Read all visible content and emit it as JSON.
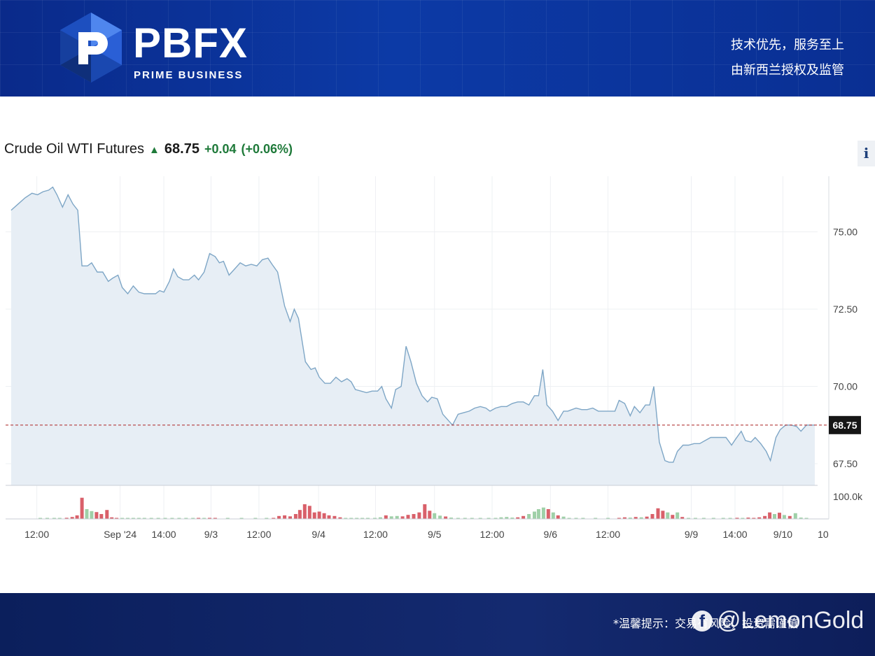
{
  "header": {
    "brand_name": "PBFX",
    "brand_sub": "PRIME BUSINESS",
    "slogan_line1": "技术优先，服务至上",
    "slogan_line2": "由新西兰授权及监管"
  },
  "quote": {
    "name": "Crude Oil WTI Futures",
    "price": "68.75",
    "change": "+0.04",
    "change_pct": "(+0.06%)",
    "info_label": "i"
  },
  "colors": {
    "line": "#7ea6c6",
    "area": "#e7eef5",
    "last_price_line": "#b3383a",
    "vol_up": "#9fd0a8",
    "vol_down": "#d9606a"
  },
  "footer": {
    "tip": "*温馨提示：交易有风险，投资需谨慎",
    "watermark": "@LemonGold"
  },
  "chart_data": {
    "type": "line",
    "title": "Crude Oil WTI Futures",
    "last_price": 68.75,
    "last_price_label": "68.75",
    "ylim": [
      66.8,
      76.8
    ],
    "y_ticks": [
      75.0,
      72.5,
      70.0,
      67.5
    ],
    "y_tick_labels": [
      "75.00",
      "72.50",
      "70.00",
      "67.50"
    ],
    "grid": true,
    "volume_scale_label": "100.0k",
    "volume_max": 180000,
    "x_range": [
      0,
      1170
    ],
    "x_ticks": [
      {
        "x": 45,
        "label": "12:00"
      },
      {
        "x": 165,
        "label": "Sep '24"
      },
      {
        "x": 228,
        "label": "14:00"
      },
      {
        "x": 296,
        "label": "9/3"
      },
      {
        "x": 365,
        "label": "12:00"
      },
      {
        "x": 451,
        "label": "9/4"
      },
      {
        "x": 533,
        "label": "12:00"
      },
      {
        "x": 618,
        "label": "9/5"
      },
      {
        "x": 701,
        "label": "12:00"
      },
      {
        "x": 785,
        "label": "9/6"
      },
      {
        "x": 868,
        "label": "12:00"
      },
      {
        "x": 988,
        "label": "9/9"
      },
      {
        "x": 1051,
        "label": "14:00"
      },
      {
        "x": 1120,
        "label": "9/10"
      },
      {
        "x": 1178,
        "label": "10"
      }
    ],
    "price": [
      [
        8,
        75.7
      ],
      [
        18,
        75.9
      ],
      [
        28,
        76.1
      ],
      [
        38,
        76.25
      ],
      [
        46,
        76.2
      ],
      [
        54,
        76.3
      ],
      [
        62,
        76.35
      ],
      [
        68,
        76.45
      ],
      [
        74,
        76.2
      ],
      [
        82,
        75.8
      ],
      [
        90,
        76.2
      ],
      [
        97,
        75.9
      ],
      [
        104,
        75.7
      ],
      [
        110,
        73.9
      ],
      [
        118,
        73.9
      ],
      [
        124,
        74.0
      ],
      [
        132,
        73.7
      ],
      [
        140,
        73.7
      ],
      [
        148,
        73.4
      ],
      [
        154,
        73.5
      ],
      [
        162,
        73.6
      ],
      [
        168,
        73.2
      ],
      [
        176,
        73.0
      ],
      [
        184,
        73.25
      ],
      [
        192,
        73.05
      ],
      [
        200,
        73.0
      ],
      [
        208,
        73.0
      ],
      [
        216,
        73.0
      ],
      [
        222,
        73.1
      ],
      [
        228,
        73.05
      ],
      [
        236,
        73.4
      ],
      [
        242,
        73.8
      ],
      [
        248,
        73.55
      ],
      [
        256,
        73.45
      ],
      [
        264,
        73.45
      ],
      [
        272,
        73.6
      ],
      [
        278,
        73.45
      ],
      [
        286,
        73.7
      ],
      [
        294,
        74.3
      ],
      [
        302,
        74.2
      ],
      [
        308,
        74.0
      ],
      [
        314,
        74.05
      ],
      [
        322,
        73.6
      ],
      [
        330,
        73.8
      ],
      [
        338,
        74.0
      ],
      [
        346,
        73.9
      ],
      [
        354,
        73.95
      ],
      [
        362,
        73.9
      ],
      [
        370,
        74.1
      ],
      [
        378,
        74.15
      ],
      [
        384,
        73.95
      ],
      [
        392,
        73.7
      ],
      [
        402,
        72.6
      ],
      [
        410,
        72.1
      ],
      [
        416,
        72.5
      ],
      [
        422,
        72.2
      ],
      [
        432,
        70.8
      ],
      [
        440,
        70.55
      ],
      [
        446,
        70.6
      ],
      [
        452,
        70.3
      ],
      [
        460,
        70.1
      ],
      [
        468,
        70.1
      ],
      [
        476,
        70.3
      ],
      [
        484,
        70.15
      ],
      [
        492,
        70.25
      ],
      [
        498,
        70.15
      ],
      [
        504,
        69.9
      ],
      [
        512,
        69.85
      ],
      [
        520,
        69.8
      ],
      [
        528,
        69.85
      ],
      [
        536,
        69.85
      ],
      [
        542,
        70.0
      ],
      [
        548,
        69.6
      ],
      [
        556,
        69.3
      ],
      [
        562,
        69.9
      ],
      [
        570,
        70.0
      ],
      [
        577,
        71.3
      ],
      [
        584,
        70.8
      ],
      [
        592,
        70.1
      ],
      [
        600,
        69.7
      ],
      [
        608,
        69.5
      ],
      [
        614,
        69.65
      ],
      [
        622,
        69.6
      ],
      [
        630,
        69.1
      ],
      [
        638,
        68.9
      ],
      [
        644,
        68.75
      ],
      [
        652,
        69.1
      ],
      [
        660,
        69.15
      ],
      [
        668,
        69.2
      ],
      [
        676,
        69.3
      ],
      [
        684,
        69.35
      ],
      [
        692,
        69.3
      ],
      [
        698,
        69.2
      ],
      [
        706,
        69.3
      ],
      [
        714,
        69.35
      ],
      [
        722,
        69.35
      ],
      [
        730,
        69.45
      ],
      [
        738,
        69.5
      ],
      [
        746,
        69.5
      ],
      [
        754,
        69.4
      ],
      [
        762,
        69.7
      ],
      [
        768,
        69.7
      ],
      [
        774,
        70.55
      ],
      [
        780,
        69.4
      ],
      [
        788,
        69.2
      ],
      [
        796,
        68.9
      ],
      [
        804,
        69.2
      ],
      [
        810,
        69.2
      ],
      [
        816,
        69.25
      ],
      [
        822,
        69.3
      ],
      [
        830,
        69.25
      ],
      [
        838,
        69.25
      ],
      [
        846,
        69.3
      ],
      [
        854,
        69.2
      ],
      [
        862,
        69.2
      ],
      [
        870,
        69.2
      ],
      [
        878,
        69.2
      ],
      [
        884,
        69.55
      ],
      [
        892,
        69.45
      ],
      [
        900,
        69.05
      ],
      [
        906,
        69.35
      ],
      [
        914,
        69.15
      ],
      [
        922,
        69.4
      ],
      [
        928,
        69.4
      ],
      [
        934,
        70.0
      ],
      [
        942,
        68.2
      ],
      [
        950,
        67.6
      ],
      [
        956,
        67.55
      ],
      [
        962,
        67.55
      ],
      [
        968,
        67.9
      ],
      [
        976,
        68.1
      ],
      [
        984,
        68.1
      ],
      [
        992,
        68.15
      ],
      [
        1000,
        68.15
      ],
      [
        1008,
        68.25
      ],
      [
        1016,
        68.35
      ],
      [
        1024,
        68.35
      ],
      [
        1032,
        68.35
      ],
      [
        1038,
        68.35
      ],
      [
        1046,
        68.1
      ],
      [
        1052,
        68.3
      ],
      [
        1060,
        68.55
      ],
      [
        1066,
        68.25
      ],
      [
        1074,
        68.2
      ],
      [
        1080,
        68.35
      ],
      [
        1088,
        68.15
      ],
      [
        1096,
        67.9
      ],
      [
        1102,
        67.6
      ],
      [
        1110,
        68.35
      ],
      [
        1116,
        68.6
      ],
      [
        1124,
        68.75
      ],
      [
        1132,
        68.75
      ],
      [
        1140,
        68.7
      ],
      [
        1146,
        68.55
      ],
      [
        1154,
        68.75
      ],
      [
        1160,
        68.75
      ],
      [
        1166,
        68.75
      ]
    ],
    "volume": [
      [
        50,
        3000,
        "up"
      ],
      [
        60,
        4000,
        "up"
      ],
      [
        70,
        3000,
        "up"
      ],
      [
        78,
        5000,
        "up"
      ],
      [
        88,
        7000,
        "down"
      ],
      [
        96,
        12000,
        "down"
      ],
      [
        103,
        22000,
        "down"
      ],
      [
        110,
        130000,
        "down"
      ],
      [
        117,
        60000,
        "up"
      ],
      [
        124,
        48000,
        "up"
      ],
      [
        131,
        42000,
        "down"
      ],
      [
        138,
        30000,
        "down"
      ],
      [
        146,
        55000,
        "down"
      ],
      [
        153,
        10000,
        "down"
      ],
      [
        160,
        6000,
        "down"
      ],
      [
        168,
        4000,
        "up"
      ],
      [
        176,
        3000,
        "up"
      ],
      [
        184,
        3000,
        "up"
      ],
      [
        192,
        3000,
        "up"
      ],
      [
        200,
        2000,
        "up"
      ],
      [
        210,
        2000,
        "up"
      ],
      [
        220,
        2000,
        "up"
      ],
      [
        230,
        2000,
        "up"
      ],
      [
        240,
        2000,
        "up"
      ],
      [
        250,
        2000,
        "up"
      ],
      [
        260,
        2000,
        "up"
      ],
      [
        270,
        3000,
        "up"
      ],
      [
        278,
        6000,
        "down"
      ],
      [
        286,
        4000,
        "up"
      ],
      [
        294,
        4000,
        "down"
      ],
      [
        302,
        3000,
        "down"
      ],
      [
        320,
        2000,
        "up"
      ],
      [
        340,
        2000,
        "up"
      ],
      [
        360,
        3000,
        "up"
      ],
      [
        376,
        3000,
        "up"
      ],
      [
        386,
        6000,
        "down"
      ],
      [
        394,
        18000,
        "down"
      ],
      [
        402,
        22000,
        "down"
      ],
      [
        410,
        16000,
        "down"
      ],
      [
        418,
        30000,
        "down"
      ],
      [
        424,
        55000,
        "down"
      ],
      [
        431,
        90000,
        "down"
      ],
      [
        438,
        80000,
        "down"
      ],
      [
        445,
        40000,
        "down"
      ],
      [
        452,
        45000,
        "down"
      ],
      [
        459,
        35000,
        "down"
      ],
      [
        466,
        22000,
        "down"
      ],
      [
        474,
        18000,
        "down"
      ],
      [
        482,
        10000,
        "down"
      ],
      [
        490,
        5000,
        "up"
      ],
      [
        498,
        4000,
        "up"
      ],
      [
        506,
        5000,
        "up"
      ],
      [
        514,
        4000,
        "up"
      ],
      [
        522,
        3000,
        "up"
      ],
      [
        532,
        5000,
        "up"
      ],
      [
        540,
        10000,
        "up"
      ],
      [
        548,
        22000,
        "down"
      ],
      [
        556,
        16000,
        "up"
      ],
      [
        564,
        18000,
        "up"
      ],
      [
        572,
        16000,
        "down"
      ],
      [
        580,
        25000,
        "down"
      ],
      [
        588,
        30000,
        "down"
      ],
      [
        596,
        40000,
        "down"
      ],
      [
        604,
        90000,
        "down"
      ],
      [
        611,
        50000,
        "down"
      ],
      [
        618,
        35000,
        "up"
      ],
      [
        626,
        20000,
        "up"
      ],
      [
        634,
        15000,
        "down"
      ],
      [
        642,
        8000,
        "up"
      ],
      [
        652,
        5000,
        "up"
      ],
      [
        662,
        3000,
        "up"
      ],
      [
        672,
        3000,
        "up"
      ],
      [
        684,
        4000,
        "up"
      ],
      [
        696,
        4000,
        "up"
      ],
      [
        706,
        6000,
        "up"
      ],
      [
        714,
        10000,
        "up"
      ],
      [
        722,
        12000,
        "up"
      ],
      [
        730,
        8000,
        "up"
      ],
      [
        738,
        10000,
        "down"
      ],
      [
        746,
        18000,
        "down"
      ],
      [
        754,
        30000,
        "up"
      ],
      [
        762,
        45000,
        "up"
      ],
      [
        768,
        60000,
        "up"
      ],
      [
        775,
        70000,
        "up"
      ],
      [
        782,
        60000,
        "down"
      ],
      [
        789,
        40000,
        "up"
      ],
      [
        796,
        22000,
        "down"
      ],
      [
        804,
        14000,
        "up"
      ],
      [
        812,
        6000,
        "up"
      ],
      [
        822,
        4000,
        "up"
      ],
      [
        832,
        3000,
        "up"
      ],
      [
        850,
        3000,
        "up"
      ],
      [
        868,
        3000,
        "up"
      ],
      [
        884,
        6000,
        "down"
      ],
      [
        892,
        10000,
        "down"
      ],
      [
        900,
        8000,
        "up"
      ],
      [
        908,
        12000,
        "down"
      ],
      [
        916,
        10000,
        "up"
      ],
      [
        924,
        14000,
        "down"
      ],
      [
        932,
        30000,
        "down"
      ],
      [
        940,
        65000,
        "down"
      ],
      [
        947,
        50000,
        "down"
      ],
      [
        954,
        40000,
        "up"
      ],
      [
        961,
        25000,
        "down"
      ],
      [
        968,
        40000,
        "up"
      ],
      [
        975,
        12000,
        "down"
      ],
      [
        984,
        6000,
        "up"
      ],
      [
        994,
        4000,
        "up"
      ],
      [
        1006,
        3000,
        "up"
      ],
      [
        1020,
        3000,
        "up"
      ],
      [
        1034,
        4000,
        "up"
      ],
      [
        1044,
        5000,
        "up"
      ],
      [
        1054,
        7000,
        "down"
      ],
      [
        1062,
        6000,
        "up"
      ],
      [
        1070,
        8000,
        "down"
      ],
      [
        1078,
        6000,
        "down"
      ],
      [
        1086,
        10000,
        "down"
      ],
      [
        1094,
        18000,
        "down"
      ],
      [
        1101,
        40000,
        "down"
      ],
      [
        1108,
        30000,
        "up"
      ],
      [
        1115,
        38000,
        "down"
      ],
      [
        1122,
        24000,
        "up"
      ],
      [
        1130,
        18000,
        "down"
      ],
      [
        1138,
        35000,
        "up"
      ],
      [
        1146,
        8000,
        "up"
      ],
      [
        1154,
        4000,
        "up"
      ]
    ]
  }
}
